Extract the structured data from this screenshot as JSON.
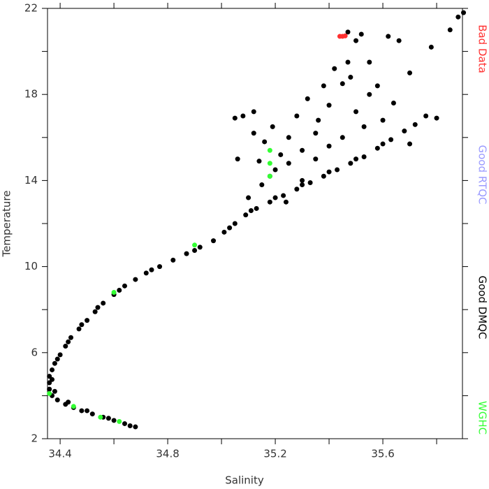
{
  "chart_data": {
    "type": "scatter",
    "x_label": "Salinity",
    "y_label": "Temperature",
    "xlim": [
      34.353,
      35.896
    ],
    "ylim": [
      2,
      22
    ],
    "xticks": [
      {
        "value": 34.4,
        "label": "34.4"
      },
      {
        "value": 34.8,
        "label": "34.8"
      },
      {
        "value": 35.2,
        "label": "35.2"
      },
      {
        "value": 35.6,
        "label": "35.6"
      }
    ],
    "xminorticks": [
      34.6,
      35.0,
      35.4,
      35.8
    ],
    "yticks": [
      2,
      6,
      10,
      14,
      18,
      22
    ],
    "yminorticks": [
      4,
      8,
      12,
      16,
      20
    ],
    "legend": "right",
    "series": [
      {
        "name": "Good DMQC",
        "color": "#000000",
        "x": [
          34.68,
          34.64,
          34.6,
          34.56,
          34.52,
          34.48,
          34.45,
          34.42,
          34.39,
          34.37,
          34.36,
          34.36,
          34.36,
          34.37,
          34.38,
          34.4,
          34.42,
          34.44,
          34.47,
          34.5,
          34.53,
          34.56,
          34.6,
          34.64,
          34.68,
          34.72,
          34.77,
          34.82,
          34.87,
          34.92,
          34.97,
          35.01,
          35.05,
          35.09,
          35.13,
          35.18,
          35.23,
          35.28,
          35.33,
          35.38,
          35.43,
          35.48,
          35.53,
          35.58,
          35.63,
          35.68,
          35.72,
          34.66,
          34.58,
          34.5,
          34.43,
          34.38,
          34.37,
          34.39,
          34.43,
          34.48,
          34.54,
          34.62,
          34.74,
          34.9,
          35.03,
          35.11,
          35.2,
          35.3,
          35.4,
          35.5,
          35.6,
          35.16,
          35.19,
          35.12,
          35.08,
          35.05,
          35.25,
          35.3,
          35.35,
          35.4,
          35.45,
          35.47,
          35.5,
          35.55,
          35.6,
          35.62,
          35.66,
          35.7,
          35.76,
          35.78,
          35.85,
          35.88,
          35.9,
          35.2,
          35.25,
          35.3,
          35.15,
          35.18,
          35.22,
          35.35,
          35.4,
          35.45,
          35.5,
          35.53,
          35.55,
          35.48,
          35.42,
          35.38,
          35.32,
          35.28,
          35.1,
          35.14,
          35.58,
          35.64,
          35.12,
          35.06,
          35.47,
          35.52,
          35.36,
          35.24,
          35.8,
          35.7
        ],
        "values": [
          2.55,
          2.7,
          2.85,
          3.0,
          3.15,
          3.3,
          3.45,
          3.6,
          3.8,
          4.0,
          4.3,
          4.6,
          4.9,
          5.2,
          5.5,
          5.9,
          6.3,
          6.7,
          7.1,
          7.5,
          7.9,
          8.3,
          8.7,
          9.1,
          9.4,
          9.7,
          10.0,
          10.3,
          10.6,
          10.9,
          11.2,
          11.6,
          12.0,
          12.4,
          12.7,
          13.0,
          13.3,
          13.6,
          13.9,
          14.2,
          14.5,
          14.8,
          15.1,
          15.5,
          15.9,
          16.3,
          16.6,
          2.6,
          2.95,
          3.3,
          3.7,
          4.2,
          4.75,
          5.7,
          6.5,
          7.3,
          8.1,
          8.9,
          9.85,
          10.75,
          11.8,
          12.6,
          13.2,
          13.8,
          14.4,
          15.0,
          15.7,
          15.8,
          16.5,
          17.2,
          17.0,
          16.9,
          16.0,
          15.4,
          16.2,
          17.5,
          18.5,
          19.5,
          20.5,
          18.0,
          16.8,
          20.7,
          20.5,
          19.0,
          17.0,
          20.2,
          21.0,
          21.6,
          21.8,
          14.5,
          14.8,
          14.0,
          13.8,
          14.2,
          15.2,
          15.0,
          15.6,
          16.0,
          17.2,
          16.5,
          19.5,
          18.8,
          19.2,
          18.4,
          17.8,
          17.0,
          13.2,
          14.9,
          18.4,
          17.6,
          16.2,
          15.0,
          20.9,
          20.8,
          16.8,
          13.0,
          16.9,
          15.7
        ]
      },
      {
        "name": "Bad Data",
        "color": "#ff3030",
        "x": [
          35.44,
          35.45,
          35.46
        ],
        "values": [
          20.7,
          20.7,
          20.72
        ]
      },
      {
        "name": "Good RTQC",
        "color": "#9999ff",
        "x": [],
        "values": []
      },
      {
        "name": "WGHC",
        "color": "#33ff33",
        "x": [
          35.18,
          35.18,
          35.18,
          34.36,
          34.45,
          34.55,
          34.62,
          34.6,
          34.9
        ],
        "values": [
          15.4,
          14.8,
          14.2,
          4.1,
          3.5,
          3.0,
          2.8,
          8.8,
          11.0
        ]
      }
    ]
  }
}
